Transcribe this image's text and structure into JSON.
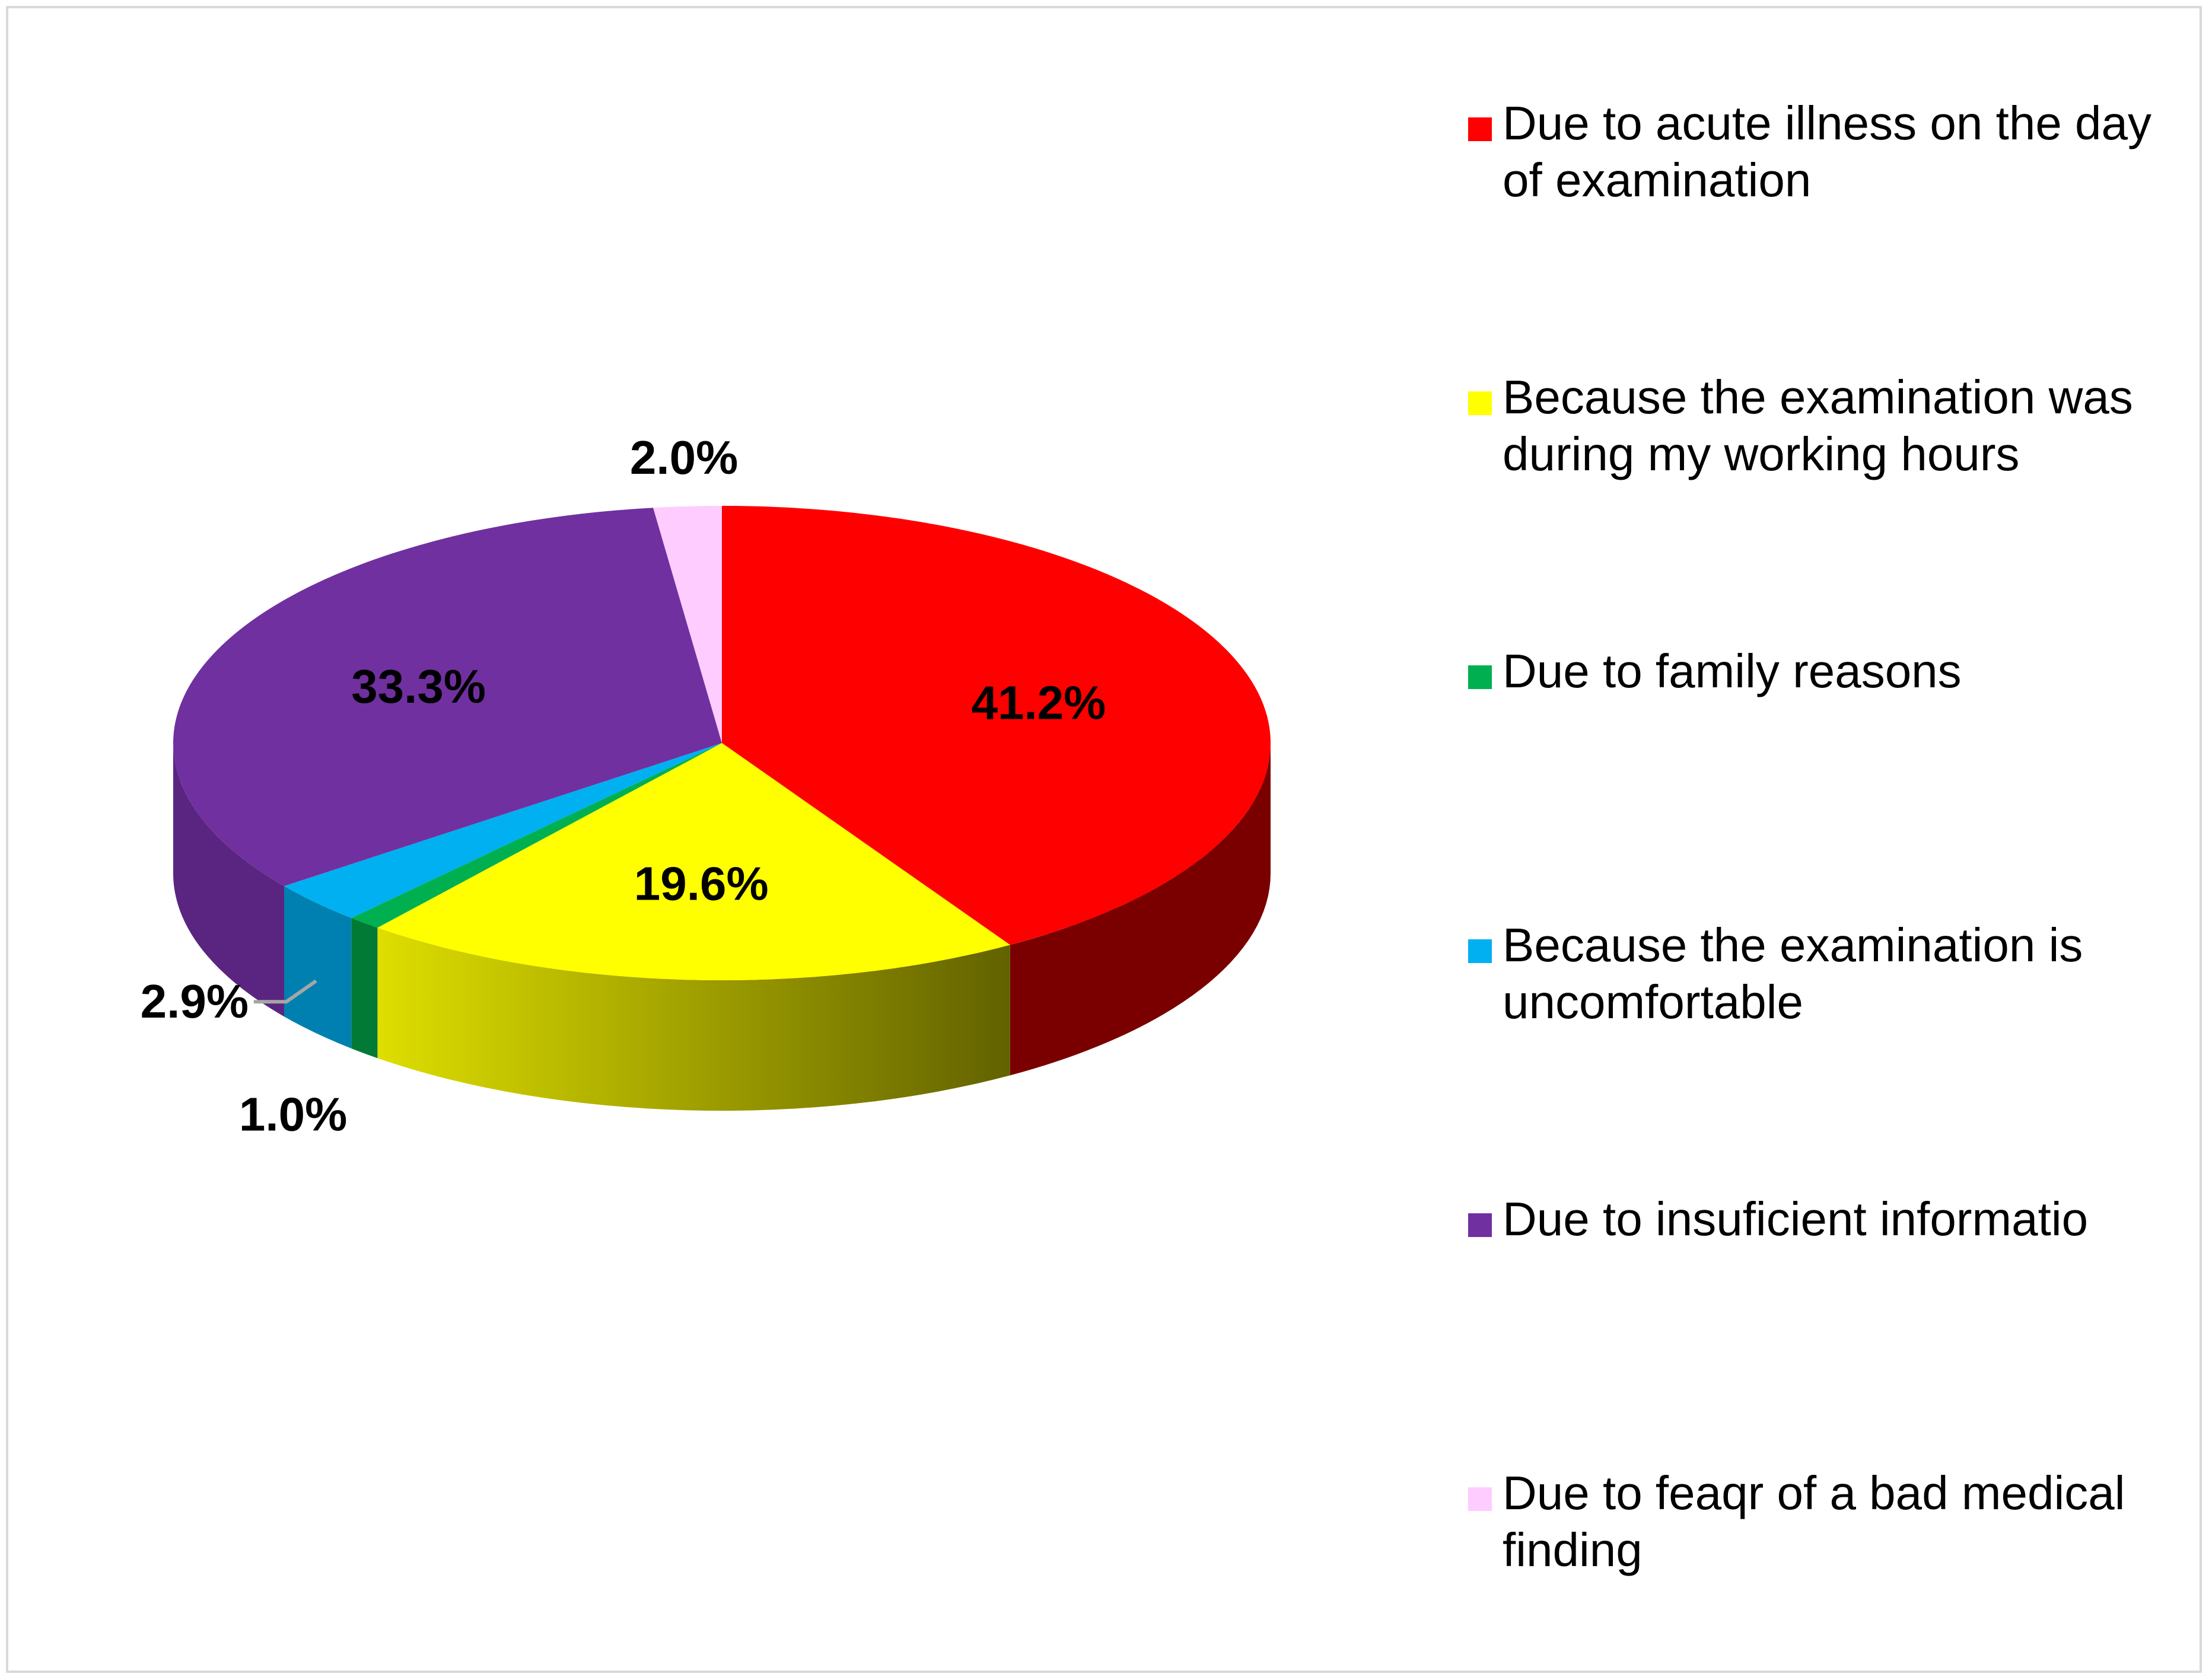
{
  "chart_data": {
    "type": "pie",
    "title": "",
    "style": "3d",
    "categories": [
      "Due to acute illness on the day of examination",
      "Because the examination was during my working hours",
      "Due to family reasons",
      "Because the examination is uncomfortable",
      "Due to insuficient informatio",
      "Due to feaqr of a bad medical finding"
    ],
    "values": [
      41.2,
      19.6,
      1.0,
      2.9,
      33.3,
      2.0
    ],
    "labels": [
      "41.2%",
      "19.6%",
      "1.0%",
      "2.9%",
      "33.3%",
      "2.0%"
    ],
    "colors": [
      "#ff0000",
      "#ffff00",
      "#00b050",
      "#00b0f0",
      "#7030a0",
      "#ffccff"
    ],
    "side_colors": [
      "#7a0000",
      "#8a8a00",
      "#007a35",
      "#0080b0",
      "#5a2580",
      "#d9a6d9"
    ],
    "legend_position": "right"
  }
}
